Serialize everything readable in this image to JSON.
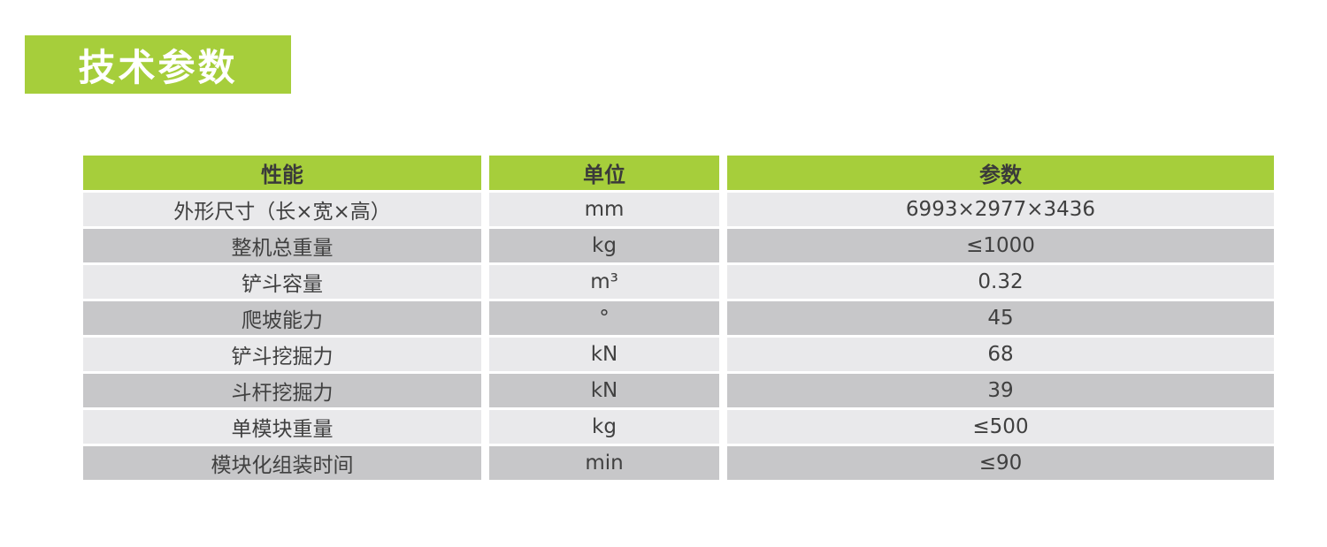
{
  "page": {
    "section_title": "技术参数"
  },
  "colors": {
    "accent_green": "#a6ce3b",
    "title_text": "#ffffff",
    "header_text": "#3a3a3a",
    "cell_text": "#404040",
    "row_light": "#e9e9eb",
    "row_dark": "#c7c7c9",
    "background": "#ffffff"
  },
  "table": {
    "headers": [
      "性能",
      "单位",
      "参数"
    ],
    "rows": [
      {
        "name": "外形尺寸（长×宽×高）",
        "unit": "mm",
        "value": "6993×2977×3436"
      },
      {
        "name": "整机总重量",
        "unit": "kg",
        "value": "≤1000"
      },
      {
        "name": "铲斗容量",
        "unit": "m³",
        "value": "0.32"
      },
      {
        "name": "爬坡能力",
        "unit": "°",
        "value": "45"
      },
      {
        "name": "铲斗挖掘力",
        "unit": "kN",
        "value": "68"
      },
      {
        "name": "斗杆挖掘力",
        "unit": "kN",
        "value": "39"
      },
      {
        "name": "单模块重量",
        "unit": "kg",
        "value": "≤500"
      },
      {
        "name": "模块化组装时间",
        "unit": "min",
        "value": "≤90"
      }
    ]
  }
}
